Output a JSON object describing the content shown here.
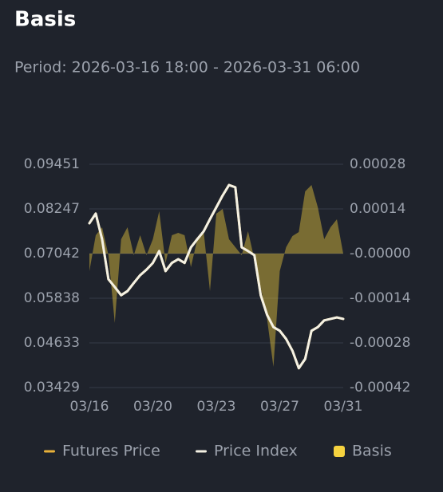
{
  "chart_data": {
    "type": "line",
    "title": "Basis",
    "subtitle": "Period: 2026-03-16 18:00 - 2026-03-31 06:00",
    "categories": [
      "03/16",
      null,
      null,
      null,
      null,
      null,
      null,
      null,
      null,
      null,
      "03/20",
      null,
      null,
      null,
      null,
      null,
      null,
      null,
      null,
      null,
      "03/23",
      null,
      null,
      null,
      null,
      null,
      null,
      null,
      null,
      null,
      "03/27",
      null,
      null,
      null,
      null,
      null,
      null,
      null,
      null,
      null,
      "03/31"
    ],
    "ylim": [
      0.03429,
      0.09451
    ],
    "yticks": [
      0.03429,
      0.04633,
      0.05838,
      0.07042,
      0.08247,
      0.09451
    ],
    "y2lim": [
      -0.00042,
      0.00028
    ],
    "y2ticks": [
      -0.00042,
      -0.00028,
      -0.00014,
      {
        "value": 0,
        "label": "-0.00000"
      },
      0.00014,
      0.00028
    ],
    "grid": true,
    "legend": "bottom",
    "series": [
      {
        "name": "Futures Price",
        "color": "#e8b13a",
        "type": "line",
        "values": [
          0.0786,
          0.0812,
          0.0743,
          0.0635,
          0.0614,
          0.0592,
          0.0603,
          0.0625,
          0.0646,
          0.0661,
          0.0679,
          0.0711,
          0.0657,
          0.0679,
          0.0689,
          0.0679,
          0.0721,
          0.0743,
          0.0764,
          0.0797,
          0.0829,
          0.0861,
          0.0889,
          0.0883,
          0.0721,
          0.0711,
          0.07,
          0.0592,
          0.0539,
          0.0506,
          0.0496,
          0.0474,
          0.0442,
          0.0395,
          0.042,
          0.0496,
          0.0506,
          0.0524,
          0.0528,
          0.0532,
          0.0528
        ]
      },
      {
        "name": "Price Index",
        "color": "#f4f1e4",
        "type": "line",
        "values": [
          0.0786,
          0.0812,
          0.0743,
          0.0635,
          0.0614,
          0.0592,
          0.0603,
          0.0625,
          0.0646,
          0.0661,
          0.0679,
          0.0711,
          0.0657,
          0.0679,
          0.0689,
          0.0679,
          0.0721,
          0.0743,
          0.0764,
          0.0797,
          0.0829,
          0.0861,
          0.0889,
          0.0883,
          0.0721,
          0.0711,
          0.07,
          0.0592,
          0.0539,
          0.0506,
          0.0496,
          0.0474,
          0.0442,
          0.0395,
          0.042,
          0.0496,
          0.0506,
          0.0524,
          0.0528,
          0.0532,
          0.0528
        ]
      },
      {
        "name": "Basis",
        "color": "#f5d23f",
        "type": "area",
        "axis": "y2",
        "values": [
          -5.5e-05,
          5.75e-05,
          8.25e-05,
          -5e-06,
          -0.0002175,
          4.5e-05,
          8.25e-05,
          -5e-06,
          5.75e-05,
          -5e-06,
          4.5e-05,
          0.0001325,
          -3e-05,
          5.75e-05,
          6.5e-05,
          5.75e-05,
          -4.25e-05,
          4.5e-05,
          7e-05,
          -0.0001175,
          0.000125,
          0.00014,
          4.5e-05,
          2e-05,
          -5e-06,
          7e-05,
          -1.75e-05,
          -0.000105,
          -0.000205,
          -0.000355,
          -5.5e-05,
          2e-05,
          5.5e-05,
          6.75e-05,
          0.000195,
          0.000215,
          0.000145,
          4.5e-05,
          8.25e-05,
          0.0001075,
          0
        ]
      }
    ]
  }
}
